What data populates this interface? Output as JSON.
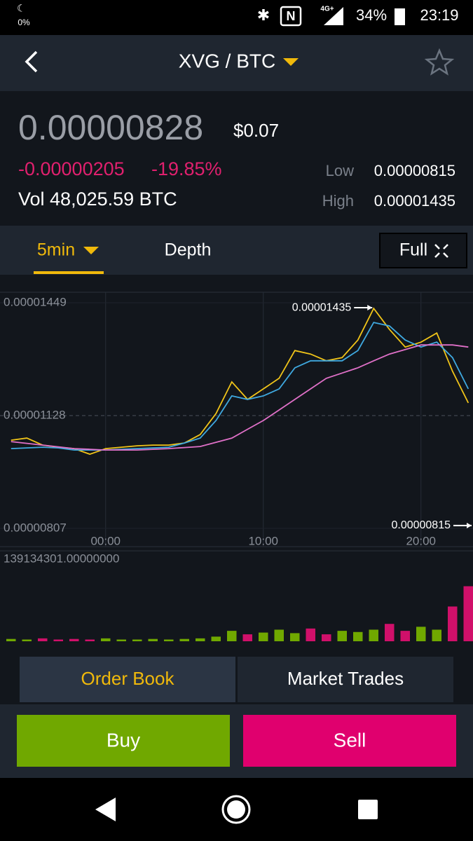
{
  "status_bar": {
    "night_pct": "0%",
    "network": "4G+",
    "battery": "34%",
    "time": "23:19"
  },
  "header": {
    "pair": "XVG / BTC"
  },
  "ticker": {
    "price": "0.00000828",
    "usd": "$0.07",
    "change": "-0.00000205",
    "change_pct": "-19.85%",
    "volume": "Vol 48,025.59 BTC",
    "low_label": "Low",
    "low": "0.00000815",
    "high_label": "High",
    "high": "0.00001435"
  },
  "tabs": {
    "interval": "5min",
    "depth": "Depth",
    "full": "Full"
  },
  "chart": {
    "x": [
      -6,
      -5,
      -4,
      -3,
      -2,
      -1,
      0,
      1,
      2,
      3,
      4,
      5,
      6,
      7,
      8,
      9,
      10,
      11,
      12,
      13,
      14,
      15,
      16,
      17,
      18,
      19,
      20,
      21,
      22,
      23
    ],
    "xlim": [
      -6.7,
      23.3
    ],
    "xticks": [
      {
        "value": 0,
        "label": "00:00"
      },
      {
        "value": 10,
        "label": "10:00"
      },
      {
        "value": 20,
        "label": "20:00"
      }
    ],
    "ylim": [
      7.55e-06,
      1.479e-05
    ],
    "yticks": [
      {
        "value": 1.449e-05,
        "label": "0.00001449"
      },
      {
        "value": 1.128e-05,
        "label": "0.00001128"
      },
      {
        "value": 8.07e-06,
        "label": "0.00000807"
      }
    ],
    "series": [
      {
        "color": "#f0c419",
        "values": [
          1.058e-05,
          1.064e-05,
          1.044e-05,
          1.038e-05,
          1.034e-05,
          1.018e-05,
          1.034e-05,
          1.038e-05,
          1.042e-05,
          1.044e-05,
          1.044e-05,
          1.05e-05,
          1.074e-05,
          1.134e-05,
          1.224e-05,
          1.174e-05,
          1.204e-05,
          1.234e-05,
          1.313e-05,
          1.303e-05,
          1.284e-05,
          1.293e-05,
          1.343e-05,
          1.433e-05,
          1.373e-05,
          1.323e-05,
          1.337e-05,
          1.363e-05,
          1.254e-05,
          1.164e-05
        ]
      },
      {
        "color": "#3fa9e0",
        "values": [
          1.034e-05,
          1.036e-05,
          1.038e-05,
          1.036e-05,
          1.03e-05,
          1.03e-05,
          1.03e-05,
          1.032e-05,
          1.034e-05,
          1.036e-05,
          1.038e-05,
          1.05e-05,
          1.064e-05,
          1.114e-05,
          1.184e-05,
          1.174e-05,
          1.184e-05,
          1.204e-05,
          1.264e-05,
          1.284e-05,
          1.284e-05,
          1.284e-05,
          1.313e-05,
          1.393e-05,
          1.383e-05,
          1.343e-05,
          1.323e-05,
          1.337e-05,
          1.293e-05,
          1.204e-05
        ]
      },
      {
        "color": "#e070c8",
        "values": [
          1.054e-05,
          1.049e-05,
          1.044e-05,
          1.039e-05,
          1.034e-05,
          1.032e-05,
          1.03e-05,
          1.03e-05,
          1.03e-05,
          1.032e-05,
          1.034e-05,
          1.037e-05,
          1.04e-05,
          1.052e-05,
          1.064e-05,
          1.089e-05,
          1.114e-05,
          1.144e-05,
          1.174e-05,
          1.204e-05,
          1.234e-05,
          1.249e-05,
          1.264e-05,
          1.284e-05,
          1.303e-05,
          1.316e-05,
          1.329e-05,
          1.329e-05,
          1.329e-05,
          1.323e-05
        ]
      }
    ],
    "high_marker": {
      "x": 17,
      "value": 1.435e-05,
      "label": "0.00001435"
    },
    "low_marker": {
      "x": 23.3,
      "value": 8.15e-06,
      "label": "0.00000815"
    },
    "volume": {
      "ylim": [
        0,
        139134301
      ],
      "label": "139134301.00000000",
      "values": [
        4000000,
        3000000,
        5000000,
        3000000,
        4000000,
        3000000,
        5000000,
        3000000,
        3000000,
        4000000,
        3000000,
        4000000,
        5000000,
        8000000,
        18000000,
        12000000,
        15000000,
        20000000,
        14000000,
        22000000,
        12000000,
        18000000,
        16000000,
        20000000,
        30000000,
        18000000,
        25000000,
        20000000,
        60000000,
        95000000
      ]
    }
  },
  "trade_tabs": {
    "order_book": "Order Book",
    "market_trades": "Market Trades"
  },
  "actions": {
    "buy": "Buy",
    "sell": "Sell"
  }
}
